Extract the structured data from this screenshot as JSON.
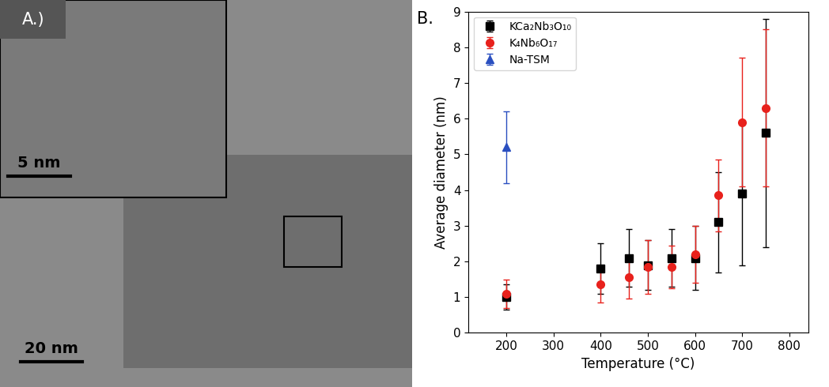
{
  "panel_a": {
    "label": "A.)",
    "inset_scale_bar": "5 nm",
    "scale_bar": "20 nm"
  },
  "chart_data": {
    "type": "scatter",
    "panel_label": "B.",
    "x_label": "Temperature (°C)",
    "y_label": "Average diameter (nm)",
    "xlim": [
      120,
      840
    ],
    "xticks": [
      200,
      300,
      400,
      500,
      600,
      700,
      800
    ],
    "ylim": [
      0,
      9
    ],
    "yticks": [
      0,
      1,
      2,
      3,
      4,
      5,
      6,
      7,
      8,
      9
    ],
    "legend": "upper left",
    "grid": false,
    "series": [
      {
        "name": "KCa₂Nb₃O₁₀",
        "color": "#000000",
        "marker": "square",
        "x": [
          200,
          400,
          460,
          500,
          550,
          600,
          650,
          700,
          750
        ],
        "values": [
          1.0,
          1.8,
          2.1,
          1.9,
          2.1,
          2.1,
          3.1,
          3.9,
          5.6
        ],
        "errors": [
          0.35,
          0.7,
          0.8,
          0.7,
          0.8,
          0.9,
          1.4,
          2.0,
          3.2
        ]
      },
      {
        "name": "K₄Nb₆O₁₇",
        "color": "#e8211c",
        "marker": "circle",
        "x": [
          200,
          400,
          460,
          500,
          550,
          600,
          650,
          700,
          750
        ],
        "values": [
          1.1,
          1.35,
          1.55,
          1.85,
          1.85,
          2.2,
          3.85,
          5.9,
          6.3
        ],
        "errors": [
          0.4,
          0.5,
          0.6,
          0.75,
          0.6,
          0.8,
          1.0,
          1.8,
          2.2
        ]
      },
      {
        "name": "Na-TSM",
        "color": "#2a4fc0",
        "marker": "triangle",
        "x": [
          200
        ],
        "values": [
          5.2
        ],
        "errors": [
          1.0
        ]
      }
    ]
  }
}
